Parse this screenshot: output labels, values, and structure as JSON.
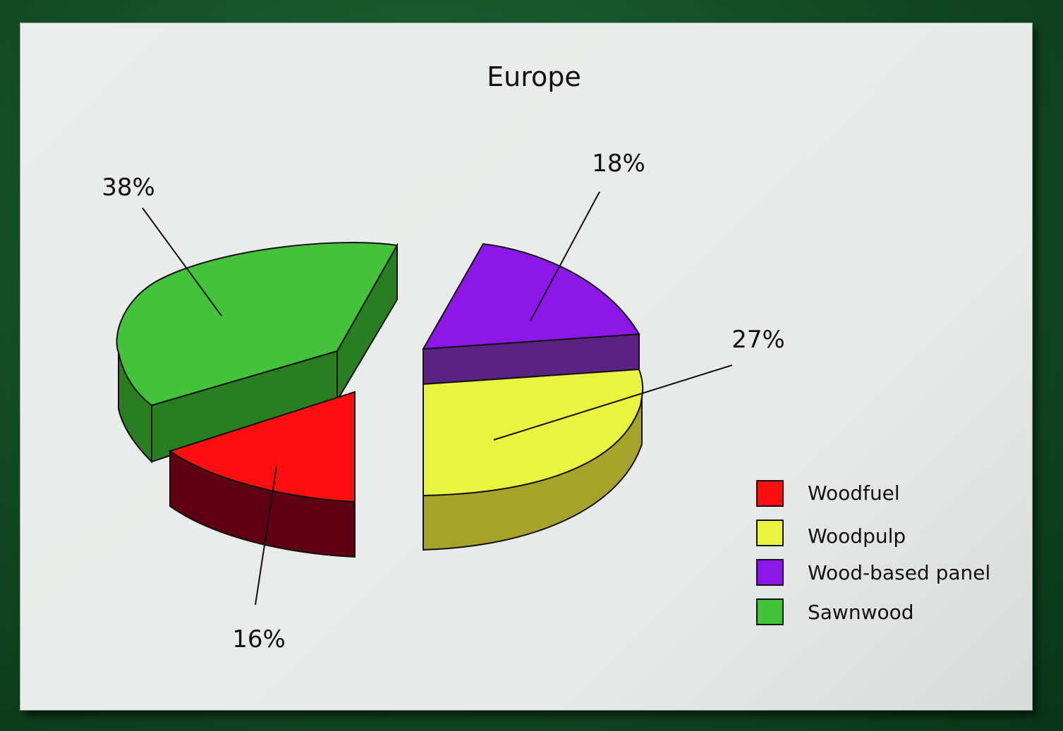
{
  "chart_data": {
    "type": "pie",
    "title": "Europe",
    "slices": [
      {
        "label": "Woodfuel",
        "value": 16,
        "display": "16%",
        "color": "#ff0e10",
        "side_color": "#5e0012"
      },
      {
        "label": "Woodpulp",
        "value": 27,
        "display": "27%",
        "color": "#e8f43e",
        "side_color": "#a6a32a"
      },
      {
        "label": "Wood-based panel",
        "value": 18,
        "display": "18%",
        "color": "#8d17e8",
        "side_color": "#5a2283"
      },
      {
        "label": "Sawnwood",
        "value": 38,
        "display": "38%",
        "color": "#42c33a",
        "side_color": "#287e20"
      }
    ],
    "legend_position": "bottom-right",
    "style": "3d-exploded"
  }
}
